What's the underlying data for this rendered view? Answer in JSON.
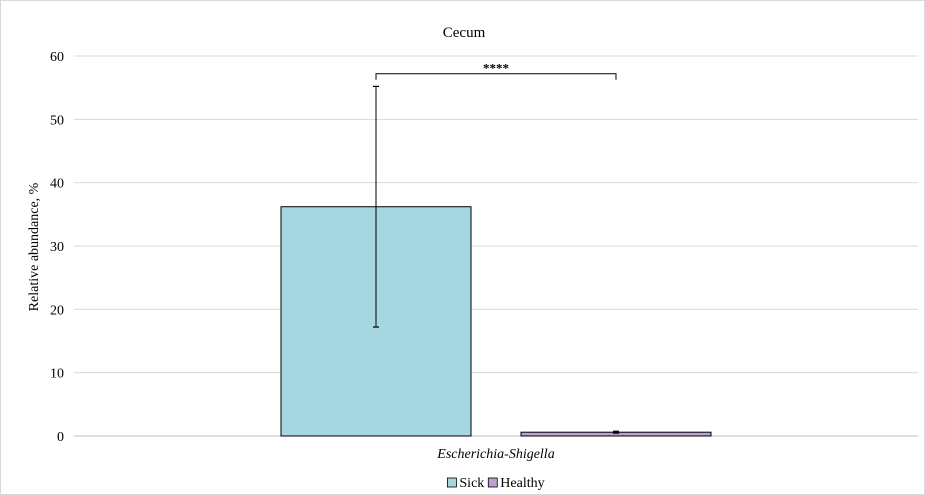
{
  "chart_data": {
    "type": "bar",
    "title": "Cecum",
    "xlabel": "",
    "ylabel": "Relative abundance, %",
    "ylim": [
      0,
      60
    ],
    "yticks": [
      0,
      10,
      20,
      30,
      40,
      50,
      60
    ],
    "grid": true,
    "legend_position": "bottom",
    "categories": [
      "Escherichia-Shigella"
    ],
    "series": [
      {
        "name": "Sick",
        "values": [
          36.2
        ],
        "error": [
          19.0
        ],
        "color": "#a6d7e1"
      },
      {
        "name": "Healthy",
        "values": [
          0.6
        ],
        "error": [
          0.15
        ],
        "color": "#b7a3cd"
      }
    ],
    "significance": {
      "label": "****",
      "between": [
        "Sick",
        "Healthy"
      ],
      "y": 57.2
    }
  }
}
